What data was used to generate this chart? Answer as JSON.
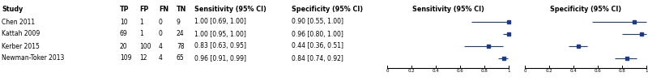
{
  "studies": [
    "Chen 2011",
    "Kattah 2009",
    "Kerber 2015",
    "Newman-Toker 2013"
  ],
  "TP": [
    "10",
    "69",
    "20",
    "109"
  ],
  "FP": [
    "1",
    "1",
    "100",
    "12"
  ],
  "FN": [
    "0",
    "0",
    "4",
    "4"
  ],
  "TN": [
    "9",
    "24",
    "78",
    "65"
  ],
  "sensitivity": [
    1.0,
    1.0,
    0.83,
    0.96
  ],
  "sensitivity_lo": [
    0.69,
    0.95,
    0.63,
    0.91
  ],
  "sensitivity_hi": [
    1.0,
    1.0,
    0.95,
    0.99
  ],
  "sensitivity_text": [
    "1.00 [0.69, 1.00]",
    "1.00 [0.95, 1.00]",
    "0.83 [0.63, 0.95]",
    "0.96 [0.91, 0.99]"
  ],
  "specificity": [
    0.9,
    0.96,
    0.44,
    0.84
  ],
  "specificity_lo": [
    0.55,
    0.8,
    0.36,
    0.74
  ],
  "specificity_hi": [
    1.0,
    1.0,
    0.51,
    0.92
  ],
  "specificity_text": [
    "0.90 [0.55, 1.00]",
    "0.96 [0.80, 1.00]",
    "0.44 [0.36, 0.51]",
    "0.84 [0.74, 0.92]"
  ],
  "header_study": "Study",
  "header_tp": "TP",
  "header_fp": "FP",
  "header_fn": "FN",
  "header_tn": "TN",
  "header_sens": "Sensitivity (95% CI)",
  "header_spec": "Specificity (95% CI)",
  "marker_color": "#1a3a8c",
  "line_color": "#000000",
  "axis_ticks": [
    0,
    0.2,
    0.4,
    0.6,
    0.8,
    1
  ],
  "tick_labels": [
    "0",
    "0.2",
    "0.4",
    "0.6",
    "0.8",
    "1"
  ],
  "bg_color": "#ffffff",
  "text_color": "#000000",
  "font_size": 5.5,
  "header_font_size": 5.8
}
